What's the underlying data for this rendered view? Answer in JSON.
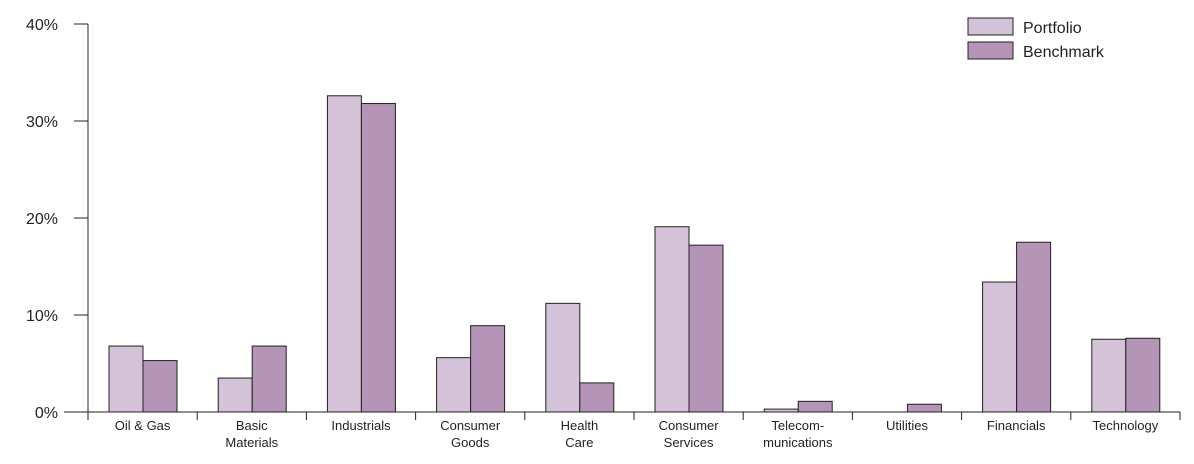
{
  "chart_data": {
    "type": "bar",
    "title": "",
    "xlabel": "",
    "ylabel": "",
    "ylim": [
      0,
      40
    ],
    "y_ticks": [
      0,
      10,
      20,
      30,
      40
    ],
    "y_tick_format": "{v}%",
    "grid": false,
    "legend_position": "top-right",
    "categories": [
      [
        "Oil & Gas"
      ],
      [
        "Basic",
        "Materials"
      ],
      [
        "Industrials"
      ],
      [
        "Consumer",
        "Goods"
      ],
      [
        "Health",
        "Care"
      ],
      [
        "Consumer",
        "Services"
      ],
      [
        "Telecom-",
        "munications"
      ],
      [
        "Utilities"
      ],
      [
        "Financials"
      ],
      [
        "Technology"
      ]
    ],
    "series": [
      {
        "name": "Portfolio",
        "color": "#d4c3d8",
        "values": [
          6.8,
          3.5,
          32.6,
          5.6,
          11.2,
          19.1,
          0.3,
          0.0,
          13.4,
          7.5
        ]
      },
      {
        "name": "Benchmark",
        "color": "#b495b8",
        "values": [
          5.3,
          6.8,
          31.8,
          8.9,
          3.0,
          17.2,
          1.1,
          0.8,
          17.5,
          7.6
        ]
      }
    ]
  },
  "colors": {
    "axis": "#231f20",
    "bar_stroke": "#231f20",
    "text": "#231f20"
  }
}
